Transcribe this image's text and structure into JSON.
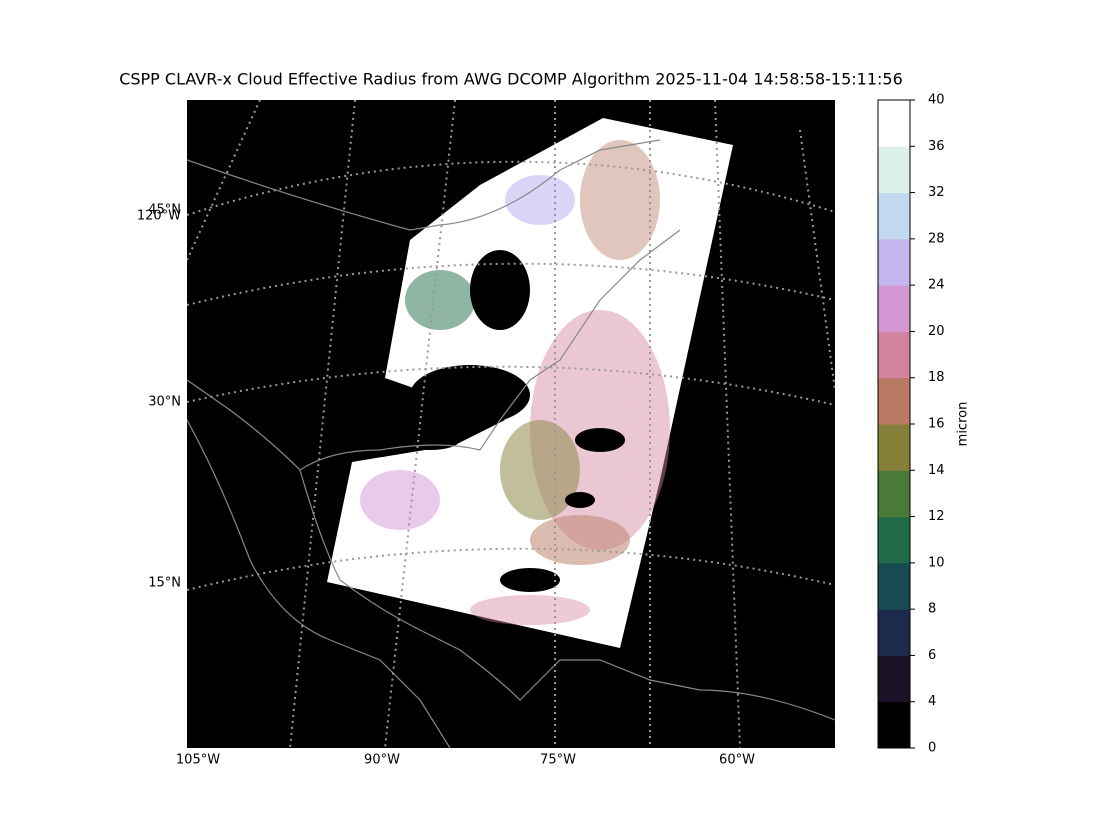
{
  "chart_data": {
    "type": "map",
    "title": "CSPP CLAVR-x Cloud Effective Radius from AWG DCOMP Algorithm 2025-11-04 14:58:58-15:11:56",
    "lon_labels": [
      "105°W",
      "90°W",
      "75°W",
      "60°W"
    ],
    "lat_labels": [
      "45°N",
      "120°W",
      "30°N",
      "15°N"
    ],
    "colorbar": {
      "label": "micron",
      "ticks": [
        0,
        4,
        6,
        8,
        10,
        12,
        14,
        16,
        18,
        20,
        24,
        28,
        32,
        36,
        40
      ],
      "colors": [
        "#000000",
        "#1d1128",
        "#1c2b4b",
        "#184a52",
        "#1f6b47",
        "#4a7a37",
        "#857f3a",
        "#b87a63",
        "#d383a0",
        "#d596d4",
        "#c4b7ef",
        "#c3d9f0",
        "#dcf1ec",
        "#ffffff"
      ]
    }
  }
}
